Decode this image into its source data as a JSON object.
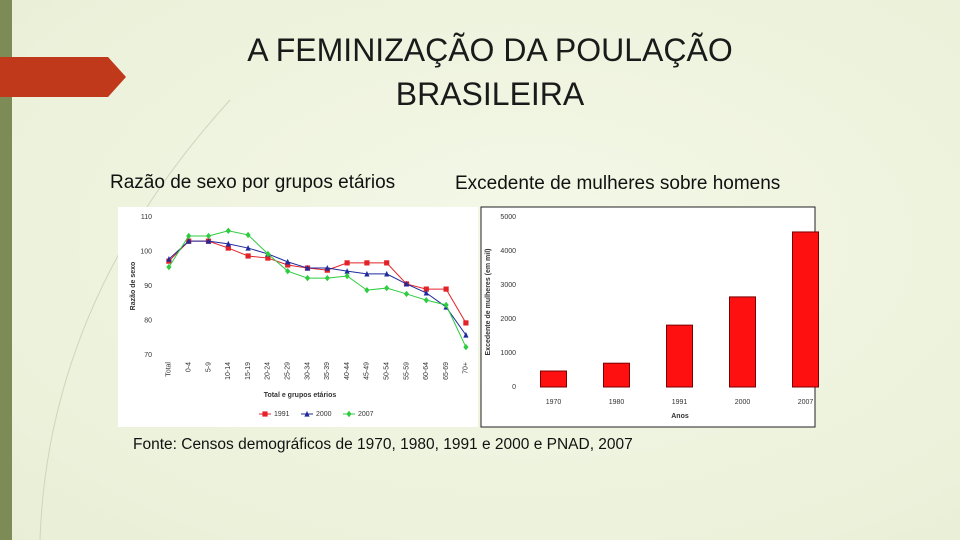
{
  "slide": {
    "title": "A FEMINIZAÇÃO DA POULAÇÃO BRASILEIRA",
    "left_caption": "Razão de sexo por grupos etários",
    "right_caption": "Excedente de mulheres sobre homens",
    "source": "Fonte: Censos demográficos de 1970, 1980, 1991 e 2000 e PNAD, 2007"
  },
  "chart_data": [
    {
      "type": "line",
      "ylabel": "Razão de sexo",
      "xlabel": "Total e grupos etários",
      "categories": [
        "Total",
        "0-4",
        "5-9",
        "10-14",
        "15-19",
        "20-24",
        "25-29",
        "30-34",
        "35-39",
        "40-44",
        "45-49",
        "50-54",
        "55-59",
        "60-64",
        "65-69",
        "70+"
      ],
      "series": [
        {
          "name": "1991",
          "color": "#e32228",
          "marker": "square",
          "values": [
            97.2,
            103,
            103,
            101,
            98.7,
            98.1,
            96.1,
            95.2,
            94.6,
            96.7,
            96.7,
            96.7,
            90.6,
            89.1,
            89.1,
            79.3
          ]
        },
        {
          "name": "2000",
          "color": "#1f2a9c",
          "marker": "triangle",
          "values": [
            97.8,
            103,
            103,
            102.2,
            101,
            99.3,
            97,
            95.2,
            95.2,
            94.3,
            93.5,
            93.5,
            90.6,
            88,
            83.9,
            75.8
          ]
        },
        {
          "name": "2007",
          "color": "#2ecc40",
          "marker": "diamond",
          "values": [
            95.5,
            104.5,
            104.5,
            106,
            104.8,
            99.3,
            94.3,
            92.3,
            92.3,
            92.9,
            88.8,
            89.4,
            87.7,
            85.9,
            84.5,
            72.3
          ]
        }
      ],
      "ylim": [
        70,
        110
      ],
      "yticks": [
        70,
        80,
        90,
        100,
        110
      ],
      "legend": "bottom"
    },
    {
      "type": "bar",
      "ylabel": "Excedente de mulheres (em mil)",
      "xlabel": "Anos",
      "categories": [
        "1970",
        "1980",
        "1991",
        "2000",
        "2007"
      ],
      "values": [
        470,
        700,
        1820,
        2650,
        4560
      ],
      "color": "#ff1010",
      "ylim": [
        0,
        5000
      ],
      "yticks": [
        0,
        1000,
        2000,
        3000,
        4000,
        5000
      ]
    }
  ]
}
